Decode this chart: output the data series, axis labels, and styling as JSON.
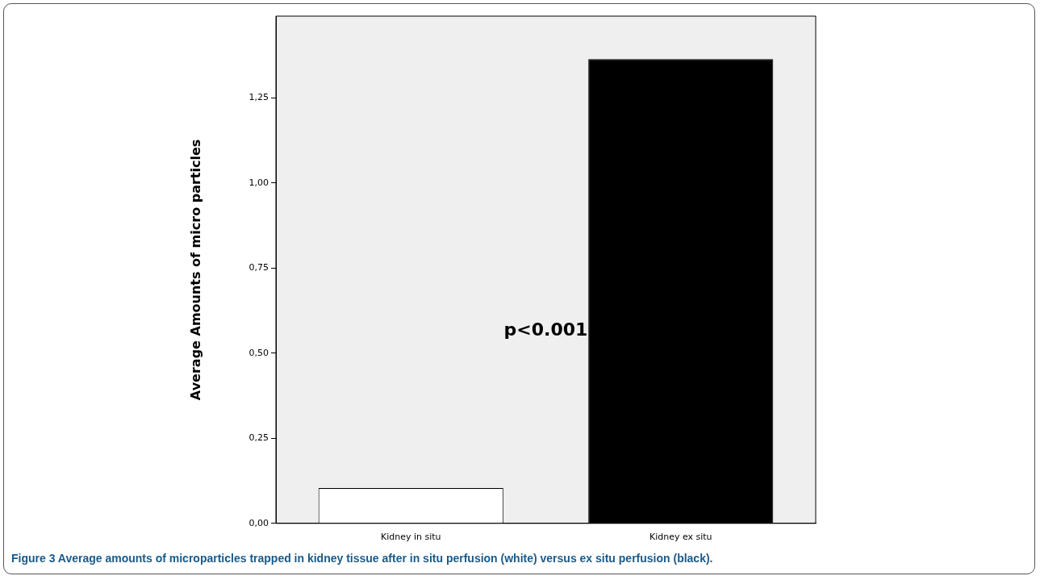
{
  "chart_data": {
    "type": "bar",
    "ylabel": "Average Amounts of micro particles",
    "categories": [
      "Kidney in situ",
      "Kidney ex situ"
    ],
    "values": [
      0.104,
      1.364
    ],
    "colors": [
      "#ffffff",
      "#000000"
    ],
    "ylim": [
      0,
      1.49
    ],
    "yticks": [
      {
        "value": 0,
        "label": "0,00"
      },
      {
        "value": 0.25,
        "label": "0,25"
      },
      {
        "value": 0.5,
        "label": "0,50"
      },
      {
        "value": 0.75,
        "label": "0,75"
      },
      {
        "value": 1,
        "label": "1,00"
      },
      {
        "value": 1.25,
        "label": "1,25"
      }
    ],
    "grid": false,
    "legend": false,
    "annotations": [
      "p<0.001",
      "Figure 3 Average amounts of microparticles trapped in kidney tissue after in situ perfusion (white) versus ex situ perfusion (black)."
    ]
  }
}
